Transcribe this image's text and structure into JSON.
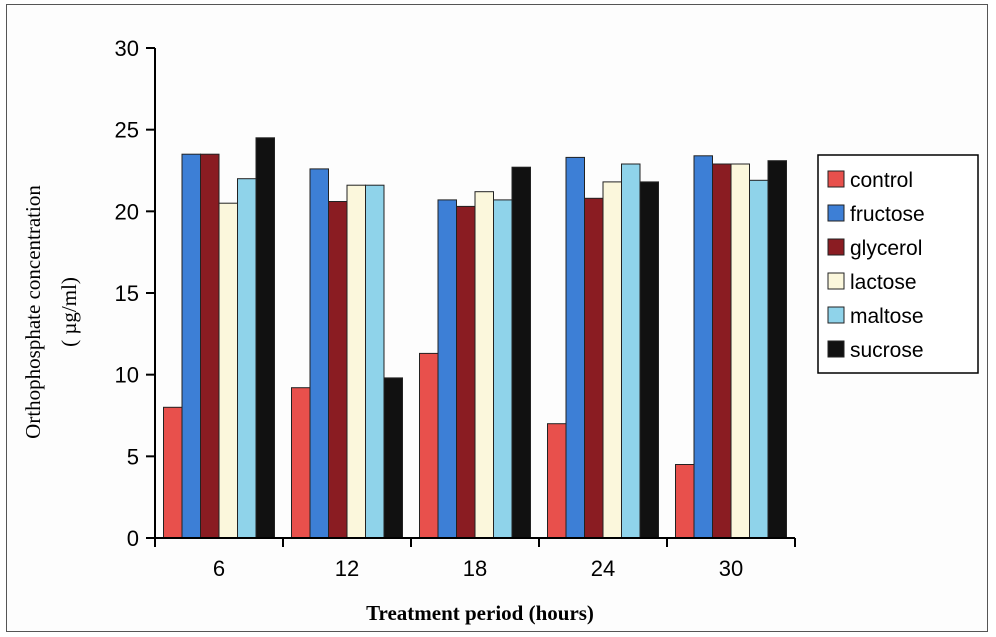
{
  "chart_data": {
    "type": "bar",
    "title": "",
    "xlabel": "Treatment period (hours)",
    "ylabel_line1": "Orthophosphate concentration",
    "ylabel_line2": "( µg/ml)",
    "ylim": [
      0,
      30
    ],
    "yticks": [
      "0",
      "5",
      "10",
      "15",
      "20",
      "25",
      "30"
    ],
    "categories": [
      "6",
      "12",
      "18",
      "24",
      "30"
    ],
    "legend_position": "right",
    "grid": false,
    "series": [
      {
        "name": "control",
        "color": "#e8504c",
        "values": [
          8.0,
          9.2,
          11.3,
          7.0,
          4.5
        ]
      },
      {
        "name": "fructose",
        "color": "#3d7fd6",
        "values": [
          23.5,
          22.6,
          20.7,
          23.3,
          23.4
        ]
      },
      {
        "name": "glycerol",
        "color": "#8a1c22",
        "values": [
          23.5,
          20.6,
          20.3,
          20.8,
          22.9
        ]
      },
      {
        "name": "lactose",
        "color": "#fbf7dc",
        "values": [
          20.5,
          21.6,
          21.2,
          21.8,
          22.9
        ]
      },
      {
        "name": "maltose",
        "color": "#8fd3ea",
        "values": [
          22.0,
          21.6,
          20.7,
          22.9,
          21.9
        ]
      },
      {
        "name": "sucrose",
        "color": "#111111",
        "values": [
          24.5,
          9.8,
          22.7,
          21.8,
          23.1
        ]
      }
    ]
  }
}
